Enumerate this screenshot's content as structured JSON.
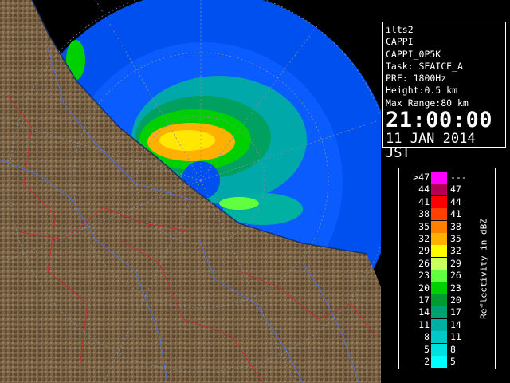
{
  "panel": {
    "lines": [
      "ilts2",
      "CAPPI",
      "CAPPI_0P5K",
      "Task: SEAICE_A",
      "PRF: 1800Hz",
      "Height:0.5 km",
      "Max Range:80 km"
    ],
    "time": "21:00:00",
    "date": "11 JAN 2014 JST"
  },
  "legend": {
    "unit": "Reflectivity in dBZ",
    "rows": [
      {
        "low": ">47",
        "high": "---",
        "color": "#ff00ff"
      },
      {
        "low": "44",
        "high": "47",
        "color": "#b00058"
      },
      {
        "low": "41",
        "high": "44",
        "color": "#ff0000"
      },
      {
        "low": "38",
        "high": "41",
        "color": "#ff4000"
      },
      {
        "low": "35",
        "high": "38",
        "color": "#ff8000"
      },
      {
        "low": "32",
        "high": "35",
        "color": "#ffb000"
      },
      {
        "low": "29",
        "high": "32",
        "color": "#ffff00"
      },
      {
        "low": "26",
        "high": "29",
        "color": "#c8ff60"
      },
      {
        "low": "23",
        "high": "26",
        "color": "#60ff40"
      },
      {
        "low": "20",
        "high": "23",
        "color": "#00d000"
      },
      {
        "low": "17",
        "high": "20",
        "color": "#009a30"
      },
      {
        "low": "14",
        "high": "17",
        "color": "#00a070"
      },
      {
        "low": "11",
        "high": "14",
        "color": "#00b0a0"
      },
      {
        "low": "8",
        "high": "11",
        "color": "#00c8c8"
      },
      {
        "low": "5",
        "high": "8",
        "color": "#00e0e0"
      },
      {
        "low": "2",
        "high": "5",
        "color": "#00ffff"
      }
    ]
  }
}
